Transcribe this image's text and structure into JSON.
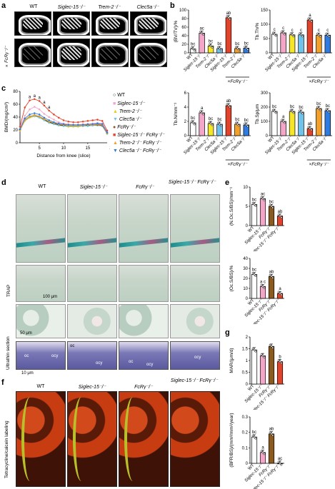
{
  "panels": {
    "a": "a",
    "b": "b",
    "c": "c",
    "d": "d",
    "e": "e",
    "f": "f",
    "g": "g"
  },
  "genotypes": [
    "WT",
    "Siglec-15⁻/⁻",
    "Trem-2⁻/⁻",
    "Clec5a⁻/⁻"
  ],
  "a_row2_label": "×FcRγ⁻/⁻",
  "xlabels_b": [
    "WT",
    "Siglec-15⁻/⁻",
    "Trem-2⁻/⁻",
    "Clec5a⁻/⁻",
    "Siglec-15⁻/⁻",
    "Trem-2⁻/⁻",
    "Clec5a⁻/⁻"
  ],
  "x_group_label": "×FcRγ⁻/⁻",
  "colors": {
    "wt": "#ffffff",
    "siglec": "#f4a6c8",
    "trem": "#f5e62a",
    "clec": "#6fc3ea",
    "fcr": "#8a5a1f",
    "dko_siglec": "#e2442b",
    "dko_trem": "#f3a02a",
    "dko_clec": "#2f7be0"
  },
  "chart_data": [
    {
      "type": "bar",
      "ylabel": "(BV/TV)/%",
      "ylim": [
        0,
        100
      ],
      "yticks": [
        0,
        20,
        40,
        60,
        80,
        100
      ],
      "values": [
        9,
        46,
        16,
        10,
        82,
        10,
        11
      ],
      "sig": [
        "bc",
        "ac",
        "bc",
        "bc",
        "ab",
        "bc",
        "bc"
      ]
    },
    {
      "type": "bar",
      "ylabel": "Tb.Th/%",
      "ylim": [
        0,
        150
      ],
      "yticks": [
        0,
        50,
        100,
        150
      ],
      "values": [
        65,
        70,
        63,
        63,
        115,
        62,
        62
      ],
      "sig": [
        "c",
        "c",
        "c",
        "c",
        "a",
        "c",
        "c"
      ]
    },
    {
      "type": "line",
      "ylabel": "BMD/(mg/cm³)",
      "xlabel": "Distance from knee (slice)",
      "ylim": [
        0,
        80
      ],
      "yticks": [
        0,
        20,
        40,
        60,
        80
      ],
      "xticks": [
        5,
        10,
        15,
        20
      ],
      "series": [
        {
          "name": "WT",
          "values": [
            20,
            35,
            40,
            42,
            40,
            36,
            32,
            30,
            28,
            27,
            26,
            26,
            26,
            26,
            27,
            27,
            28,
            27,
            15
          ]
        },
        {
          "name": "Siglec-15⁻/⁻",
          "values": [
            22,
            42,
            52,
            56,
            52,
            45,
            40,
            36,
            32,
            30,
            29,
            28,
            28,
            29,
            29,
            30,
            31,
            30,
            17
          ]
        },
        {
          "name": "Trem-2⁻/⁻",
          "values": [
            19,
            34,
            39,
            41,
            40,
            35,
            31,
            29,
            27,
            26,
            25,
            25,
            25,
            26,
            26,
            27,
            27,
            26,
            14
          ]
        },
        {
          "name": "Clec5a⁻/⁻",
          "values": [
            20,
            35,
            40,
            42,
            39,
            35,
            31,
            29,
            27,
            26,
            26,
            26,
            26,
            26,
            26,
            27,
            27,
            26,
            14
          ]
        },
        {
          "name": "FcRγ⁻/⁻",
          "values": [
            21,
            36,
            41,
            43,
            41,
            37,
            33,
            31,
            29,
            28,
            27,
            27,
            27,
            27,
            28,
            28,
            28,
            27,
            15
          ]
        },
        {
          "name": "Siglec-15⁻/⁻ FcRγ⁻/⁻",
          "values": [
            25,
            55,
            66,
            68,
            65,
            58,
            50,
            44,
            39,
            35,
            33,
            32,
            32,
            33,
            34,
            35,
            36,
            34,
            19
          ]
        },
        {
          "name": "Trem-2⁻/⁻ FcRγ⁻/⁻",
          "values": [
            20,
            36,
            41,
            43,
            41,
            37,
            33,
            31,
            29,
            28,
            27,
            27,
            27,
            27,
            28,
            28,
            29,
            28,
            15
          ]
        },
        {
          "name": "Clec5a⁻/⁻ FcRγ⁻/⁻",
          "values": [
            21,
            38,
            44,
            46,
            44,
            39,
            35,
            32,
            30,
            29,
            28,
            28,
            28,
            28,
            29,
            29,
            30,
            29,
            16
          ]
        }
      ],
      "annotations": [
        "a",
        "a",
        "a",
        "a",
        "a"
      ]
    },
    {
      "type": "bar",
      "ylabel": "Tb.N/mm⁻¹",
      "ylim": [
        0,
        6
      ],
      "yticks": [
        0,
        2,
        4,
        6
      ],
      "values": [
        1.8,
        3.2,
        1.7,
        1.6,
        4.2,
        1.6,
        1.5
      ],
      "sig": [
        "bc",
        "a",
        "bc",
        "bc",
        "ab",
        "bc",
        "bc"
      ]
    },
    {
      "type": "bar",
      "ylabel": "Tb.Sp/μm",
      "ylim": [
        0,
        300
      ],
      "yticks": [
        0,
        100,
        200,
        300
      ],
      "values": [
        170,
        100,
        170,
        165,
        50,
        190,
        175
      ],
      "sig": [
        "bc",
        "a",
        "bc",
        "bc",
        "ab",
        "bc",
        "bc"
      ]
    },
    {
      "type": "bar",
      "ylabel": "(N.Oc.S/BS)/mm⁻¹",
      "ylim": [
        0,
        10
      ],
      "yticks": [
        0,
        5,
        10
      ],
      "categories": [
        "WT",
        "Siglec-15⁻/⁻",
        "FcRγ⁻/⁻",
        "Siglec-15⁻/⁻ FcRγ⁻/⁻"
      ],
      "values": [
        5.5,
        7,
        5,
        2.5
      ],
      "sig": [
        "bc",
        "ac",
        "bc",
        "ab"
      ]
    },
    {
      "type": "bar",
      "ylabel": "(Oc.S/BS)/%",
      "ylim": [
        0,
        40
      ],
      "yticks": [
        0,
        10,
        20,
        30,
        40
      ],
      "categories": [
        "WT",
        "Siglec-15⁻/⁻",
        "FcRγ⁻/⁻",
        "Siglec-15⁻/⁻ FcRγ⁻/⁻"
      ],
      "values": [
        24,
        12,
        22,
        5
      ],
      "sig": [
        "bc",
        "a c",
        "ab",
        "a"
      ]
    },
    {
      "type": "bar",
      "ylabel": "MAR/(μm/d)",
      "ylim": [
        0,
        2
      ],
      "yticks": [
        0,
        0.5,
        1.0,
        1.5,
        2.0
      ],
      "categories": [
        "WT",
        "Siglec-15⁻/⁻",
        "FcRγ⁻/⁻",
        "Siglec-15⁻/⁻ FcRγ⁻/⁻"
      ],
      "values": [
        1.45,
        1.2,
        1.6,
        0.95
      ],
      "sig": [
        "",
        "",
        "",
        "b"
      ]
    },
    {
      "type": "bar",
      "ylabel": "(BFR/BS)/(mm³/mm²/year)",
      "ylim": [
        0,
        0.3
      ],
      "yticks": [
        0,
        0.1,
        0.2,
        0.3
      ],
      "categories": [
        "WT",
        "Siglec-15⁻/⁻",
        "FcRγ⁻/⁻",
        "Siglec-15⁻/⁻ FcRγ⁻/⁻"
      ],
      "values": [
        0.17,
        0.07,
        0.19,
        0.0
      ],
      "sig": [
        "bc",
        "a",
        "ab",
        "ac"
      ]
    }
  ],
  "d": {
    "cols": [
      "WT",
      "Siglec-15⁻/⁻",
      "FcRγ⁻/⁻",
      "Siglec-15⁻/⁻ FcRγ⁻/⁻"
    ],
    "row_trap": "TRAP",
    "row_em": "Ultrathin section",
    "scale1": "100 μm",
    "scale2": "50 μm",
    "scale3": "10 μm",
    "em_labels": [
      "oc",
      "ocy",
      "oc",
      "ocy",
      "oc",
      "ocy",
      "ocy"
    ]
  },
  "f": {
    "row": "Tetracycline/calcein labeling"
  }
}
